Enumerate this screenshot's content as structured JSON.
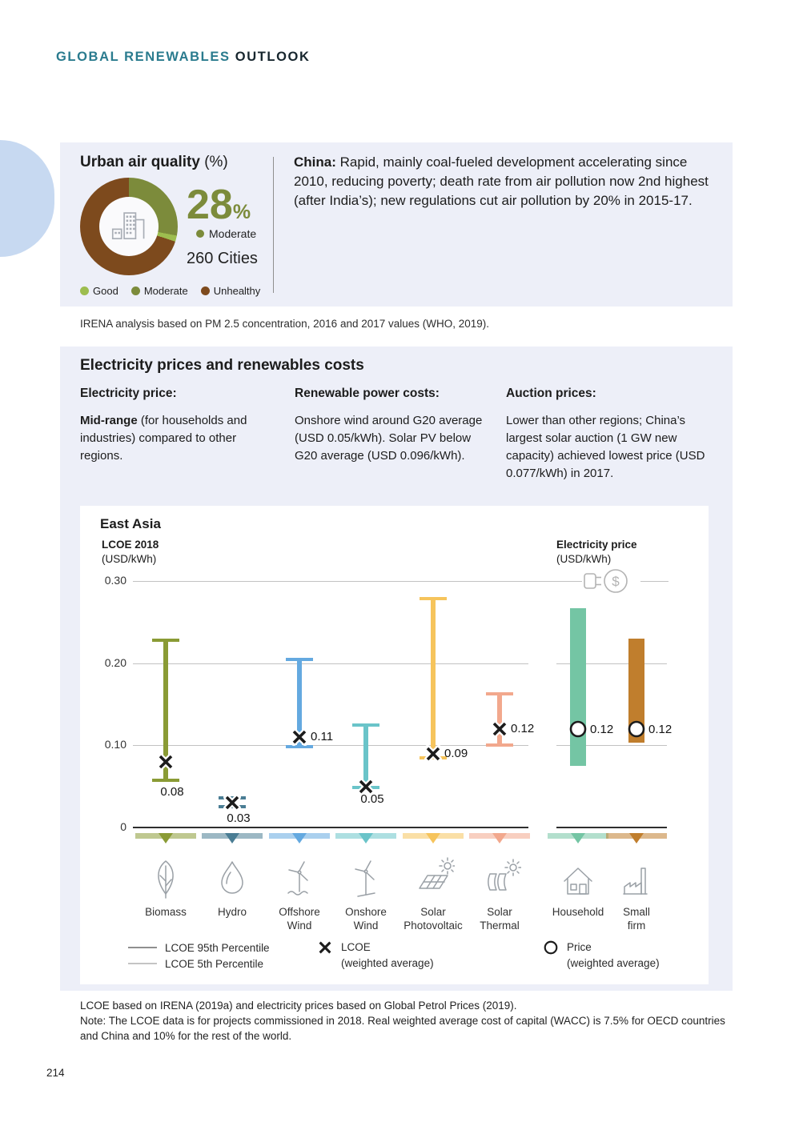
{
  "header": {
    "title_primary": "GLOBAL RENEWABLES",
    "title_secondary": "OUTLOOK"
  },
  "page_number": "214",
  "air_quality": {
    "title": "Urban air quality",
    "title_suffix": "(%)",
    "highlight_value": "28",
    "highlight_unit": "%",
    "highlight_label": "Moderate",
    "cities_label": "260 Cities",
    "donut_segments": [
      {
        "label": "Moderate",
        "percent": 28,
        "color": "#7c8b3b"
      },
      {
        "label": "Good",
        "percent": 2,
        "color": "#9dbd4f"
      },
      {
        "label": "Unhealthy",
        "percent": 70,
        "color": "#7d4a1d"
      }
    ],
    "legend": [
      {
        "label": "Good",
        "color": "#9dbd4f"
      },
      {
        "label": "Moderate",
        "color": "#7c8b3b"
      },
      {
        "label": "Unhealthy",
        "color": "#7d4a1d"
      }
    ],
    "china_lead": "China:",
    "china_text": " Rapid, mainly coal-fueled development accelerating since 2010, reducing poverty; death rate from air pollution now 2nd highest (after India’s); new regulations cut air pollution by 20% in 2015-17."
  },
  "source_note": "IRENA analysis based on PM 2.5 concentration, 2016 and 2017 values (WHO, 2019).",
  "prices_panel": {
    "title": "Electricity prices and renewables costs",
    "columns": [
      {
        "heading": "Electricity price:",
        "lead": "Mid-range",
        "body": " (for households and industries) compared to other regions."
      },
      {
        "heading": "Renewable power costs:",
        "lead": "",
        "body": "Onshore wind around G20 average (USD 0.05/kWh). Solar PV below G20 average (USD 0.096/kWh)."
      },
      {
        "heading": "Auction prices:",
        "lead": "",
        "body": "Lower than other regions; China’s largest solar auction (1 GW new capacity) achieved lowest price (USD 0.077/kWh) in 2017."
      }
    ]
  },
  "chart_data": {
    "type": "range-bar",
    "title": "East Asia",
    "left_axis": {
      "label": "LCOE 2018",
      "unit": "(USD/kWh)"
    },
    "right_axis": {
      "label": "Electricity price",
      "unit": "(USD/kWh)"
    },
    "ylim": [
      0,
      0.3
    ],
    "yticks": [
      {
        "label": "0.30",
        "value": 0.3
      },
      {
        "label": "0.20",
        "value": 0.2
      },
      {
        "label": "0.10",
        "value": 0.1
      },
      {
        "label": "0",
        "value": 0
      }
    ],
    "lcoe_series": [
      {
        "name": "Biomass",
        "label": "Biomass",
        "icon": "leaf",
        "color": "#8a9b35",
        "p5": 0.057,
        "p95": 0.228,
        "avg": 0.08,
        "avg_label": "0.08",
        "label_pos": "below"
      },
      {
        "name": "Hydro",
        "label": "Hydro",
        "icon": "water-drop",
        "color": "#4a7d94",
        "p5": 0.025,
        "p95": 0.036,
        "avg": 0.03,
        "avg_label": "0.03",
        "label_pos": "below"
      },
      {
        "name": "Offshore Wind",
        "label": "Offshore\nWind",
        "icon": "offshore-wind-turbine",
        "color": "#64a9e0",
        "p5": 0.098,
        "p95": 0.205,
        "avg": 0.11,
        "avg_label": "0.11",
        "label_pos": "right"
      },
      {
        "name": "Onshore Wind",
        "label": "Onshore\nWind",
        "icon": "wind-turbine",
        "color": "#6ac4c9",
        "p5": 0.049,
        "p95": 0.125,
        "avg": 0.05,
        "avg_label": "0.05",
        "label_pos": "below"
      },
      {
        "name": "Solar Photovoltaic",
        "label": "Solar\nPhotovoltaic",
        "icon": "solar-panel",
        "color": "#f6c45c",
        "p5": 0.085,
        "p95": 0.279,
        "avg": 0.09,
        "avg_label": "0.09",
        "label_pos": "right"
      },
      {
        "name": "Solar Thermal",
        "label": "Solar\nThermal",
        "icon": "solar-thermal",
        "color": "#f2a88d",
        "p5": 0.1,
        "p95": 0.163,
        "avg": 0.12,
        "avg_label": "0.12",
        "label_pos": "right"
      }
    ],
    "price_series": [
      {
        "name": "Household",
        "label": "Household",
        "icon": "house",
        "color": "#74c5a4",
        "low": 0.075,
        "high": 0.267,
        "price": 0.12,
        "price_label": "0.12"
      },
      {
        "name": "Small firm",
        "label": "Small\nfirm",
        "icon": "factory",
        "color": "#c07e2d",
        "low": 0.103,
        "high": 0.23,
        "price": 0.12,
        "price_label": "0.12"
      }
    ],
    "legend": {
      "p95_label": "LCOE 95th Percentile",
      "p5_label": "LCOE 5th Percentile",
      "lcoe_label": "LCOE",
      "lcoe_sub": "(weighted average)",
      "price_label": "Price",
      "price_sub": "(weighted average)"
    }
  },
  "footnotes": [
    "LCOE based on IRENA (2019a) and electricity prices based on Global Petrol Prices (2019).",
    "Note: The LCOE data is for projects commissioned in 2018. Real weighted average cost of capital (WACC) is 7.5% for OECD countries and China and 10% for the rest of the world."
  ]
}
